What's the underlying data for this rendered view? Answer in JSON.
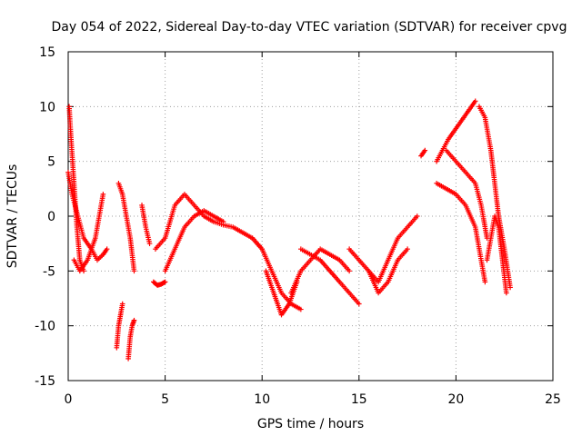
{
  "chart_data": {
    "type": "scatter",
    "title": "Day 054 of 2022, Sidereal Day-to-day VTEC variation (SDTVAR) for receiver cpvg",
    "xlabel": "GPS time / hours",
    "ylabel": "SDTVAR / TECUs",
    "xlim": [
      0,
      25
    ],
    "ylim": [
      -15,
      15
    ],
    "x_ticks": [
      0,
      5,
      10,
      15,
      20,
      25
    ],
    "y_ticks": [
      -15,
      -10,
      -5,
      0,
      5,
      10,
      15
    ],
    "x_tick_labels": [
      "0",
      "5",
      "10",
      "15",
      "20",
      "25"
    ],
    "y_tick_labels": [
      "-15",
      "-10",
      "-5",
      "0",
      "5",
      "10",
      "15"
    ],
    "grid": true,
    "marker": "+",
    "color": "#ff0000",
    "series": [
      {
        "name": "s1",
        "x": [
          0.0,
          0.2,
          0.5,
          0.8,
          1.2,
          1.5,
          1.8,
          2.0
        ],
        "y": [
          4,
          2,
          0,
          -2,
          -3,
          -4,
          -3.5,
          -3
        ]
      },
      {
        "name": "s2",
        "x": [
          0.05,
          0.15,
          0.3,
          0.45,
          0.6,
          0.8
        ],
        "y": [
          10,
          7,
          3,
          -1,
          -4,
          -5
        ]
      },
      {
        "name": "s3",
        "x": [
          0.3,
          0.6,
          1.0,
          1.4,
          1.8
        ],
        "y": [
          -4,
          -5,
          -4,
          -2,
          2
        ]
      },
      {
        "name": "s4",
        "x": [
          2.6,
          2.8,
          3.0,
          3.2,
          3.4
        ],
        "y": [
          3,
          2,
          0,
          -2,
          -5
        ]
      },
      {
        "name": "s5",
        "x": [
          2.5,
          2.6,
          2.7,
          2.8
        ],
        "y": [
          -12,
          -10,
          -9,
          -8
        ]
      },
      {
        "name": "s6",
        "x": [
          3.1,
          3.2,
          3.3,
          3.4
        ],
        "y": [
          -13,
          -11,
          -10,
          -9.5
        ]
      },
      {
        "name": "s7",
        "x": [
          3.8,
          4.0,
          4.2
        ],
        "y": [
          1,
          -1,
          -2.5
        ]
      },
      {
        "name": "s8",
        "x": [
          4.4,
          4.6,
          4.8,
          5.0
        ],
        "y": [
          -6,
          -6.3,
          -6.2,
          -6
        ]
      },
      {
        "name": "s9",
        "x": [
          4.5,
          5.0,
          5.5,
          6.0,
          6.5,
          7.0,
          7.5,
          8.0,
          8.5,
          9.0,
          9.5,
          10.0
        ],
        "y": [
          -3,
          -2,
          1,
          2,
          1,
          0,
          -0.5,
          -0.8,
          -1,
          -1.5,
          -2,
          -3
        ]
      },
      {
        "name": "s10",
        "x": [
          5.0,
          5.5,
          6.0,
          6.5,
          7.0,
          7.5,
          8.0
        ],
        "y": [
          -5,
          -3,
          -1,
          0,
          0.5,
          0,
          -0.5
        ]
      },
      {
        "name": "s11",
        "x": [
          9.5,
          10.0,
          10.5,
          11.0,
          11.5,
          12.0
        ],
        "y": [
          -2,
          -3,
          -5,
          -7,
          -8,
          -8.5
        ]
      },
      {
        "name": "s12",
        "x": [
          10.2,
          10.6,
          11.0,
          11.4,
          11.8
        ],
        "y": [
          -5,
          -7,
          -9,
          -8,
          -6
        ]
      },
      {
        "name": "s13",
        "x": [
          11.5,
          12.0,
          12.5,
          13.0,
          13.5,
          14.0,
          14.5
        ],
        "y": [
          -7,
          -5,
          -4,
          -3,
          -3.5,
          -4,
          -5
        ]
      },
      {
        "name": "s14",
        "x": [
          12.0,
          13.0,
          14.0,
          14.5,
          15.0
        ],
        "y": [
          -3,
          -4,
          -6,
          -7,
          -8
        ]
      },
      {
        "name": "s15",
        "x": [
          14.5,
          15.0,
          15.5,
          16.0,
          16.5,
          17.0,
          17.5,
          18.0
        ],
        "y": [
          -3,
          -4,
          -5,
          -6,
          -4,
          -2,
          -1,
          0
        ]
      },
      {
        "name": "s16",
        "x": [
          15.5,
          16.0,
          16.5,
          17.0,
          17.5
        ],
        "y": [
          -5,
          -7,
          -6,
          -4,
          -3
        ]
      },
      {
        "name": "s17",
        "x": [
          18.2,
          18.4
        ],
        "y": [
          5.5,
          6
        ]
      },
      {
        "name": "s18",
        "x": [
          19.0,
          19.3,
          19.6,
          20.0,
          20.4,
          20.8,
          21.0
        ],
        "y": [
          5,
          6,
          7,
          8,
          9,
          10,
          10.5
        ]
      },
      {
        "name": "s19",
        "x": [
          19.0,
          19.5,
          20.0,
          20.5,
          21.0,
          21.5
        ],
        "y": [
          3,
          2.5,
          2.0,
          1.0,
          -1,
          -6
        ]
      },
      {
        "name": "s20",
        "x": [
          19.5,
          20.0,
          20.5,
          21.0,
          21.3,
          21.6
        ],
        "y": [
          6,
          5,
          4,
          3,
          1,
          -2
        ]
      },
      {
        "name": "s21",
        "x": [
          21.2,
          21.5,
          21.8,
          22.0,
          22.2,
          22.5,
          22.8
        ],
        "y": [
          10,
          9,
          6,
          3,
          0,
          -3,
          -6.5
        ]
      },
      {
        "name": "s22",
        "x": [
          21.6,
          21.8,
          22.0,
          22.2,
          22.4,
          22.6
        ],
        "y": [
          -4,
          -2,
          0,
          -1,
          -4,
          -7
        ]
      }
    ]
  }
}
